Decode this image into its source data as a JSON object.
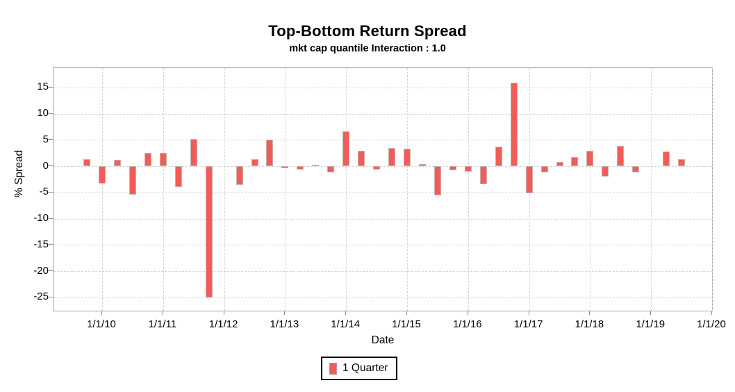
{
  "chart_data": {
    "type": "bar",
    "title": "Top-Bottom Return Spread",
    "subtitle": "mkt cap quantile Interaction : 1.0",
    "xlabel": "Date",
    "ylabel": "% Spread",
    "grid": true,
    "legend_position": "bottom-center",
    "legend_entries": [
      {
        "label": "1 Quarter",
        "color": "#f25c58"
      }
    ],
    "bar_color": "#f25c58",
    "bar_border_color": "#c9b0af",
    "ylim": [
      -27.8,
      18.7
    ],
    "yticks": [
      15,
      10,
      5,
      0,
      -5,
      -10,
      -15,
      -20,
      -25
    ],
    "xticks": [
      "1/1/10",
      "1/1/11",
      "1/1/12",
      "1/1/13",
      "1/1/14",
      "1/1/15",
      "1/1/16",
      "1/1/17",
      "1/1/18",
      "1/1/19",
      "1/1/20"
    ],
    "x": [
      "10/1/09",
      "1/1/10",
      "4/1/10",
      "7/1/10",
      "10/1/10",
      "1/1/11",
      "4/1/11",
      "7/1/11",
      "10/1/11",
      "1/1/12",
      "4/1/12",
      "7/1/12",
      "10/1/12",
      "1/1/13",
      "4/1/13",
      "7/1/13",
      "10/1/13",
      "1/1/14",
      "4/1/14",
      "7/1/14",
      "10/1/14",
      "1/1/15",
      "4/1/15",
      "7/1/15",
      "10/1/15",
      "1/1/16",
      "4/1/16",
      "7/1/16",
      "10/1/16",
      "1/1/17",
      "4/1/17",
      "7/1/17",
      "10/1/17",
      "1/1/18",
      "4/1/18",
      "7/1/18",
      "10/1/18",
      "1/1/19",
      "4/1/19",
      "7/1/19"
    ],
    "values": [
      1.4,
      -3.3,
      1.2,
      -5.4,
      2.5,
      2.6,
      -4.0,
      5.2,
      -25.0,
      null,
      -3.5,
      1.3,
      5.1,
      -0.4,
      -0.6,
      0.3,
      -1.2,
      6.6,
      2.9,
      -0.7,
      3.5,
      3.3,
      0.4,
      -5.5,
      -0.8,
      -1.0,
      -3.4,
      3.7,
      15.9,
      -5.2,
      -1.2,
      0.8,
      1.8,
      2.9,
      -2.0,
      3.9,
      -1.2,
      null,
      2.8,
      1.3
    ],
    "series_name": "1 Quarter"
  }
}
